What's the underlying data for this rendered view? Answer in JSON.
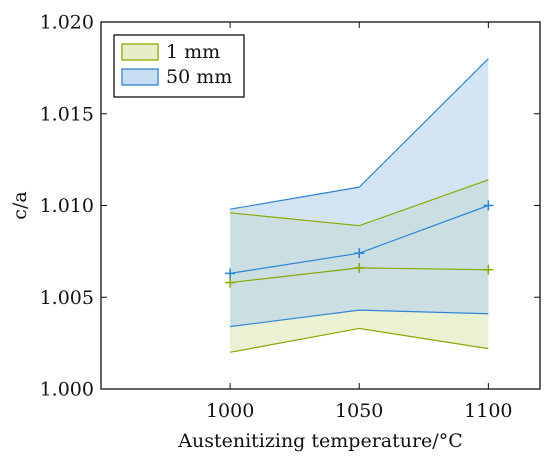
{
  "chart_data": {
    "type": "area",
    "xlabel": "Austenitizing temperature/°C",
    "ylabel": "c/a",
    "xlim": [
      950,
      1120
    ],
    "ylim": [
      1.0,
      1.02
    ],
    "x_ticks": [
      1000,
      1050,
      1100
    ],
    "x_tick_labels": [
      "1000",
      "1050",
      "1100"
    ],
    "y_ticks": [
      1.0,
      1.005,
      1.01,
      1.015,
      1.02
    ],
    "y_tick_labels": [
      "1.000",
      "1.005",
      "1.010",
      "1.015",
      "1.020"
    ],
    "grid": false,
    "legend_position": "top-left",
    "x": [
      1000,
      1050,
      1100
    ],
    "series": [
      {
        "name": "1 mm",
        "color": "#8aaa00",
        "fill": "#dde8b5",
        "mean": [
          1.0058,
          1.0066,
          1.0065
        ],
        "lower": [
          1.002,
          1.0033,
          1.0022
        ],
        "upper": [
          1.0096,
          1.0089,
          1.0114
        ]
      },
      {
        "name": "50 mm",
        "color": "#2f86d8",
        "fill": "#b5d3ef",
        "mean": [
          1.0063,
          1.0074,
          1.01
        ],
        "lower": [
          1.0034,
          1.0043,
          1.0041
        ],
        "upper": [
          1.0098,
          1.011,
          1.018
        ]
      }
    ]
  }
}
